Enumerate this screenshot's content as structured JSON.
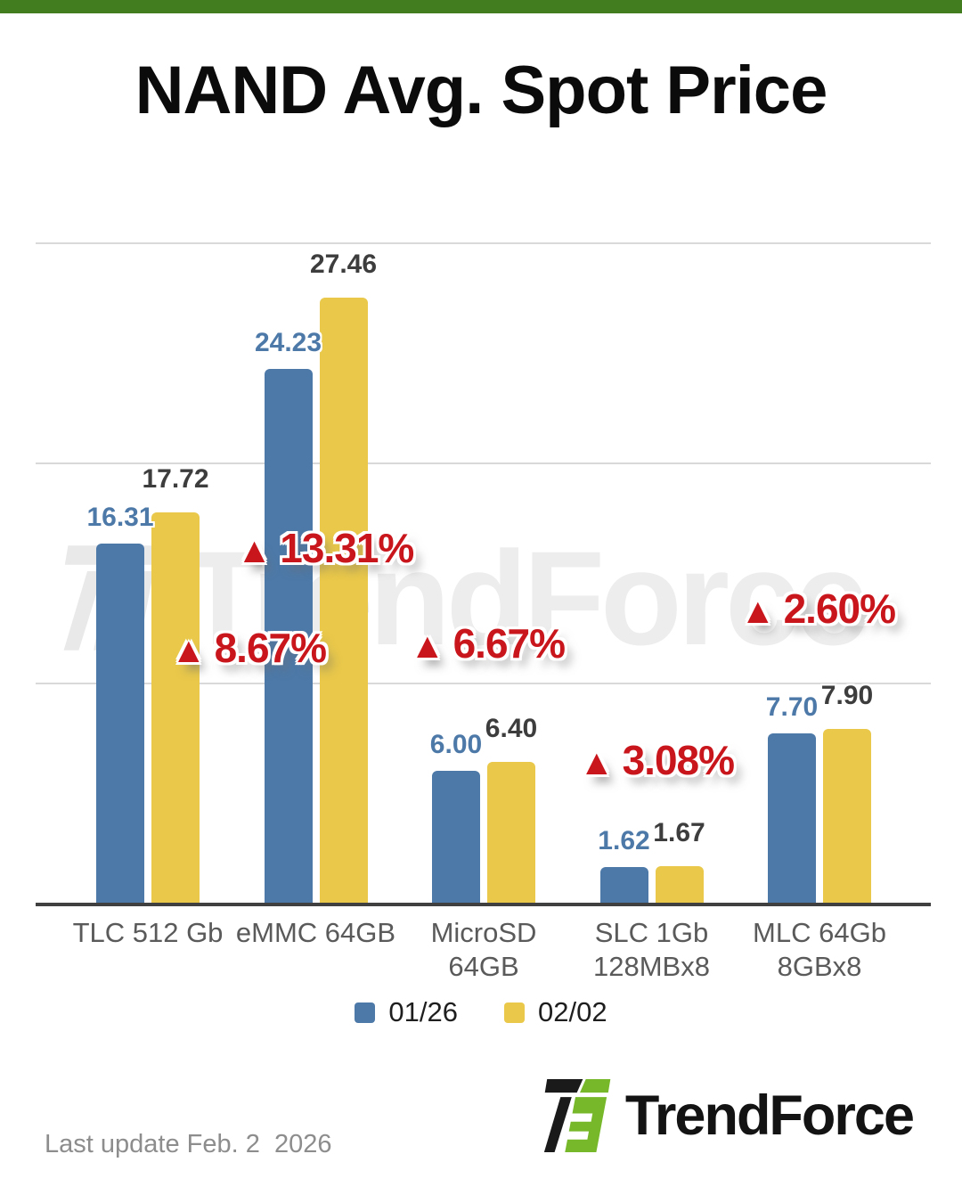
{
  "header": {
    "title": "NAND Avg. Spot Price"
  },
  "chart_data": {
    "type": "bar",
    "title": "NAND Avg. Spot Price",
    "categories": [
      "TLC 512 Gb",
      "eMMC 64GB",
      "MicroSD\n64GB",
      "SLC 1Gb\n128MBx8",
      "MLC 64Gb\n8GBx8"
    ],
    "series": [
      {
        "name": "01/26",
        "color": "#4d79a8",
        "values": [
          16.31,
          24.23,
          6.0,
          1.62,
          7.7
        ]
      },
      {
        "name": "02/02",
        "color": "#e9c84a",
        "values": [
          17.72,
          27.46,
          6.4,
          1.67,
          7.9
        ]
      }
    ],
    "percent_changes": [
      "8.67%",
      "13.31%",
      "6.67%",
      "3.08%",
      "2.60%"
    ],
    "ylim": [
      0,
      30.87
    ],
    "gridline_values": [
      10,
      20,
      30
    ],
    "grid": true,
    "legend_position": "bottom",
    "value_labels_shown": true
  },
  "colors": {
    "top_bar_green": "#427d1f",
    "series1_blue": "#4d79a8",
    "series2_yellow": "#e9c84a",
    "change_red": "#c9161c",
    "gridline_gray": "#d9d9d9",
    "axis_dark": "#404040",
    "watermark_gray": "#ededed",
    "logo_green": "#76b82a",
    "logo_black": "#131313"
  },
  "watermark": {
    "text": "TrendForce"
  },
  "footer": {
    "last_update": "Last update Feb. 2  2026",
    "brand_name": "TrendForce"
  }
}
